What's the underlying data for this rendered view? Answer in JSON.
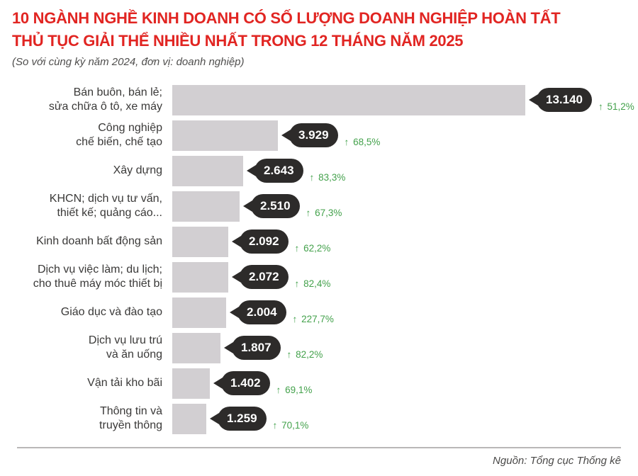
{
  "header": {
    "title_lines": [
      "10 NGÀNH NGHỀ KINH DOANH CÓ SỐ LƯỢNG DOANH NGHIỆP HOÀN TẤT",
      "THỦ TỤC GIẢI THỂ NHIỀU NHẤT TRONG 12 THÁNG NĂM 2025"
    ],
    "subtitle": "(So với cùng kỳ năm 2024, đơn vị: doanh nghiệp)"
  },
  "footer": {
    "source": "Nguồn: Tổng cục Thống kê"
  },
  "icons": {
    "increase_arrow": "↑"
  },
  "colors": {
    "title_red": "#e12522",
    "bar_gray": "#d2cfd2",
    "bubble_dark": "#2d2b2a",
    "increase_green": "#43a14b",
    "label_gray": "#3a3938"
  },
  "chart_data": {
    "type": "bar",
    "orientation": "horizontal",
    "title": "10 NGÀNH NGHỀ KINH DOANH CÓ SỐ LƯỢNG DOANH NGHIỆP HOÀN TẤT THỦ TỤC GIẢI THỂ NHIỀU NHẤT TRONG 12 THÁNG NĂM 2025",
    "subtitle": "(So với cùng kỳ năm 2024, đơn vị: doanh nghiệp)",
    "unit": "doanh nghiệp",
    "comparison_base": "cùng kỳ năm 2024",
    "x_max": 13140,
    "grid": false,
    "legend": false,
    "rows": [
      {
        "label_lines": [
          "Bán buôn, bán lẻ;",
          "sửa chữa ô tô, xe máy"
        ],
        "value": 13140,
        "value_label": "13.140",
        "change_pct": 51.2,
        "change_label": "51,2%",
        "direction": "up"
      },
      {
        "label_lines": [
          "Công nghiệp",
          "chế biến, chế tạo"
        ],
        "value": 3929,
        "value_label": "3.929",
        "change_pct": 68.5,
        "change_label": "68,5%",
        "direction": "up"
      },
      {
        "label_lines": [
          "Xây dựng"
        ],
        "value": 2643,
        "value_label": "2.643",
        "change_pct": 83.3,
        "change_label": "83,3%",
        "direction": "up"
      },
      {
        "label_lines": [
          "KHCN; dịch vụ tư vấn,",
          "thiết kế; quảng cáo..."
        ],
        "value": 2510,
        "value_label": "2.510",
        "change_pct": 67.3,
        "change_label": "67,3%",
        "direction": "up"
      },
      {
        "label_lines": [
          "Kinh doanh bất động sản"
        ],
        "value": 2092,
        "value_label": "2.092",
        "change_pct": 62.2,
        "change_label": "62,2%",
        "direction": "up"
      },
      {
        "label_lines": [
          "Dịch vụ việc làm; du lịch;",
          "cho thuê máy móc thiết bị"
        ],
        "value": 2072,
        "value_label": "2.072",
        "change_pct": 82.4,
        "change_label": "82,4%",
        "direction": "up"
      },
      {
        "label_lines": [
          "Giáo dục và đào tạo"
        ],
        "value": 2004,
        "value_label": "2.004",
        "change_pct": 227.7,
        "change_label": "227,7%",
        "direction": "up"
      },
      {
        "label_lines": [
          "Dịch vụ lưu trú",
          "và ăn uống"
        ],
        "value": 1807,
        "value_label": "1.807",
        "change_pct": 82.2,
        "change_label": "82,2%",
        "direction": "up"
      },
      {
        "label_lines": [
          "Vận tải kho bãi"
        ],
        "value": 1402,
        "value_label": "1.402",
        "change_pct": 69.1,
        "change_label": "69,1%",
        "direction": "up"
      },
      {
        "label_lines": [
          "Thông tin và",
          "truyền thông"
        ],
        "value": 1259,
        "value_label": "1.259",
        "change_pct": 70.1,
        "change_label": "70,1%",
        "direction": "up"
      }
    ]
  }
}
